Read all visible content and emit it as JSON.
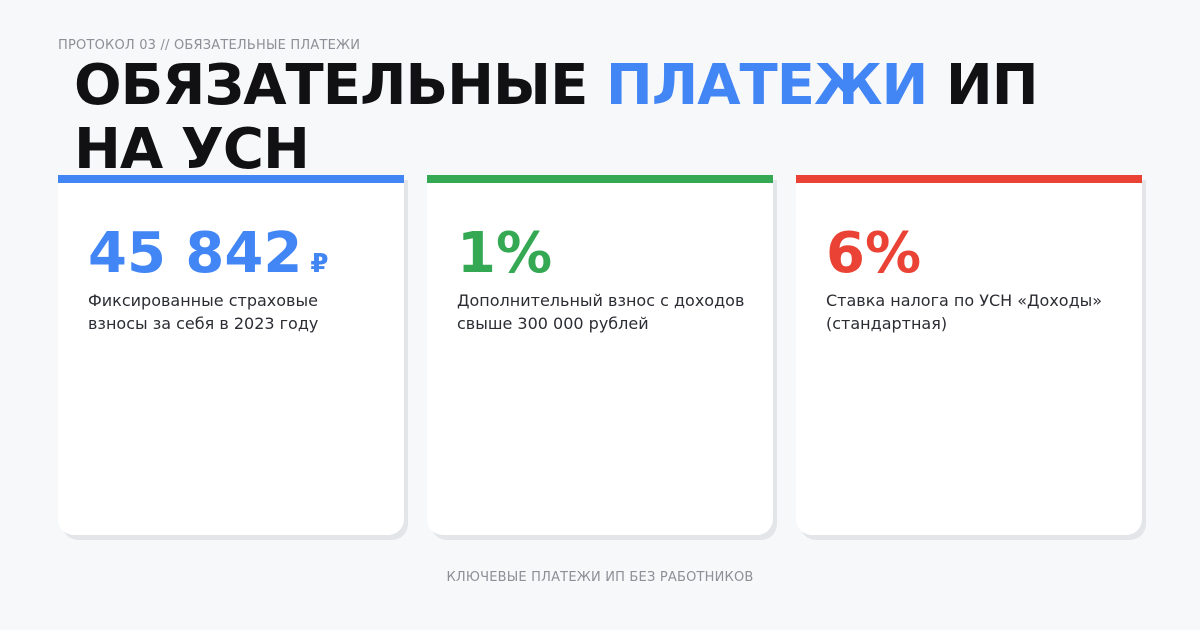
{
  "header": {
    "protocol": "ПРОТОКОЛ 03 // ОБЯЗАТЕЛЬНЫЕ ПЛАТЕЖИ",
    "title_part1": "ОБЯЗАТЕЛЬНЫЕ ",
    "title_accent": "ПЛАТЕЖИ",
    "title_part2": " ИП НА УСН"
  },
  "colors": {
    "background": "#f7f8fa",
    "title": "#111114",
    "accent_blue": "#4285f4",
    "accent_green": "#34a853",
    "accent_red": "#ea4335",
    "muted_text": "#8c8f96"
  },
  "cards": [
    {
      "value": "45 842",
      "currency": "₽",
      "description": "Фиксированные страховые взносы за себя в 2023 году",
      "color": "#4285f4"
    },
    {
      "value": "1%",
      "currency": "",
      "description": "Дополнительный взнос с доходов свыше 300 000 рублей",
      "color": "#34a853"
    },
    {
      "value": "6%",
      "currency": "",
      "description": "Ставка налога по УСН «Доходы» (стандартная)",
      "color": "#ea4335"
    }
  ],
  "footer": {
    "caption": "КЛЮЧЕВЫЕ ПЛАТЕЖИ ИП БЕЗ РАБОТНИКОВ"
  }
}
